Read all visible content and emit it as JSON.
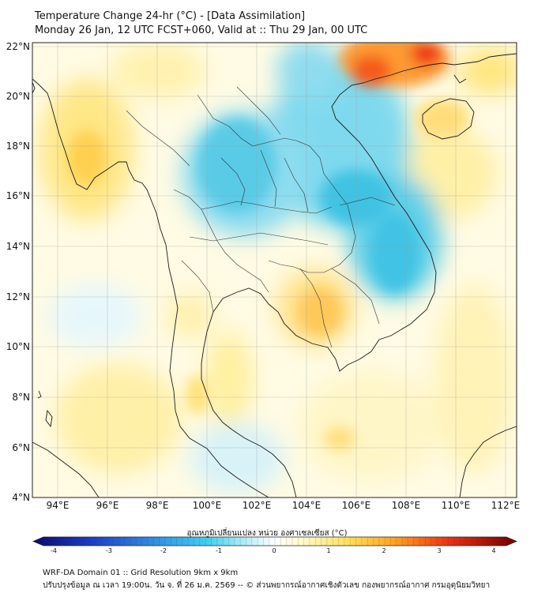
{
  "header": {
    "title": "Temperature Change 24-hr (°C) - [Data Assimilation]",
    "subtitle": "Monday 26 Jan, 12 UTC FCST+060, Valid at :: Thu 29 Jan, 00 UTC"
  },
  "map": {
    "lat_labels": [
      "22°N",
      "20°N",
      "18°N",
      "16°N",
      "14°N",
      "12°N",
      "10°N",
      "8°N",
      "6°N",
      "4°N"
    ],
    "lon_labels": [
      "94°E",
      "96°E",
      "98°E",
      "100°E",
      "102°E",
      "104°E",
      "106°E",
      "108°E",
      "110°E",
      "112°E"
    ],
    "lat_range": [
      4,
      22.2
    ],
    "lon_range": [
      93,
      112.5
    ]
  },
  "colorbar": {
    "title": "อุณหภูมิเปลี่ยนแปลง หน่วย องศาเซลเซียส (°C)",
    "ticks": [
      "-4",
      "-3",
      "-2",
      "-1",
      "0",
      "1",
      "2",
      "3",
      "4"
    ],
    "min": -4,
    "max": 4
  },
  "footer": {
    "line1": "WRF-DA Domain 01 :: Grid Resolution 9km x 9km",
    "line2": "ปรับปรุงข้อมูล ณ เวลา 19:00น. วัน จ. ที่ 26 ม.ค. 2569 -- © ส่วนพยากรณ์อากาศเชิงตัวเลข กองพยากรณ์อากาศ กรมอุตุนิยมวิทยา"
  }
}
